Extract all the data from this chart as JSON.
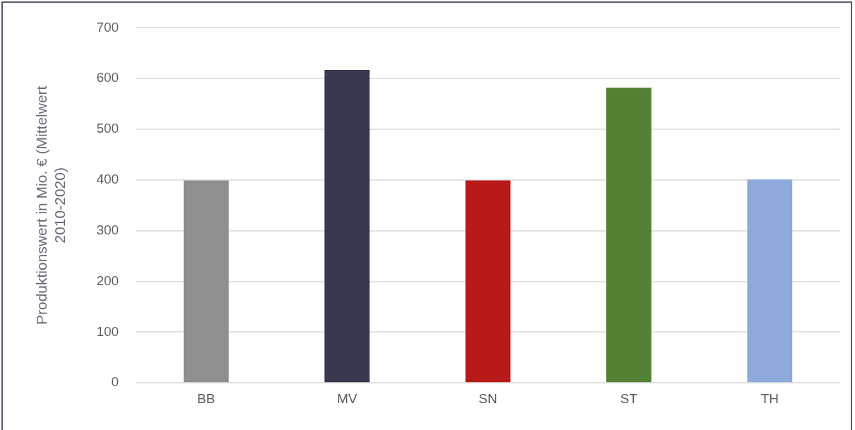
{
  "chart_data": {
    "type": "bar",
    "ylabel": "Produktionswert in Mio. € (Mittelwert\n2010-2020)",
    "categories": [
      "BB",
      "MV",
      "SN",
      "ST",
      "TH"
    ],
    "values": [
      399,
      617,
      399,
      582,
      401
    ],
    "colors": [
      "#8f8f8f",
      "#383851",
      "#b81a1a",
      "#548235",
      "#8eaadb"
    ],
    "ylim": [
      0,
      700
    ],
    "yticks": [
      0,
      100,
      200,
      300,
      400,
      500,
      600,
      700
    ],
    "grid": "y",
    "legend": false
  }
}
